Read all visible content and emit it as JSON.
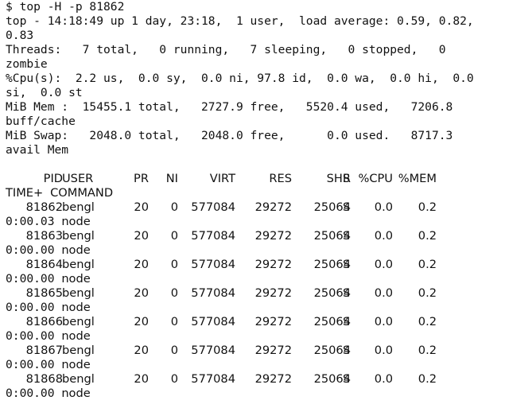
{
  "command": "$ top -H -p 81862",
  "summary": [
    "top - 14:18:49 up 1 day, 23:18,  1 user,  load average: 0.59, 0.82,",
    "0.83",
    "Threads:   7 total,   0 running,   7 sleeping,   0 stopped,   0",
    "zombie",
    "%Cpu(s):  2.2 us,  0.0 sy,  0.0 ni, 97.8 id,  0.0 wa,  0.0 hi,  0.0",
    "si,  0.0 st",
    "MiB Mem :  15455.1 total,   2727.9 free,   5520.4 used,   7206.8",
    "buff/cache",
    "MiB Swap:   2048.0 total,   2048.0 free,      0.0 used.   8717.3",
    "avail Mem"
  ],
  "columns": {
    "pid": "PID",
    "user": "USER",
    "pr": "PR",
    "ni": "NI",
    "virt": "VIRT",
    "res": "RES",
    "shr": "SHR",
    "s": "S",
    "cpu": "%CPU",
    "mem": "%MEM",
    "time": "TIME+",
    "command": "COMMAND"
  },
  "rows": [
    {
      "pid": "81862",
      "user": "bengl",
      "pr": "20",
      "ni": "0",
      "virt": "577084",
      "res": "29272",
      "shr": "25064",
      "s": "S",
      "cpu": "0.0",
      "mem": "0.2",
      "time": "0:00.03",
      "command": "node"
    },
    {
      "pid": "81863",
      "user": "bengl",
      "pr": "20",
      "ni": "0",
      "virt": "577084",
      "res": "29272",
      "shr": "25064",
      "s": "S",
      "cpu": "0.0",
      "mem": "0.2",
      "time": "0:00.00",
      "command": "node"
    },
    {
      "pid": "81864",
      "user": "bengl",
      "pr": "20",
      "ni": "0",
      "virt": "577084",
      "res": "29272",
      "shr": "25064",
      "s": "S",
      "cpu": "0.0",
      "mem": "0.2",
      "time": "0:00.00",
      "command": "node"
    },
    {
      "pid": "81865",
      "user": "bengl",
      "pr": "20",
      "ni": "0",
      "virt": "577084",
      "res": "29272",
      "shr": "25064",
      "s": "S",
      "cpu": "0.0",
      "mem": "0.2",
      "time": "0:00.00",
      "command": "node"
    },
    {
      "pid": "81866",
      "user": "bengl",
      "pr": "20",
      "ni": "0",
      "virt": "577084",
      "res": "29272",
      "shr": "25064",
      "s": "S",
      "cpu": "0.0",
      "mem": "0.2",
      "time": "0:00.00",
      "command": "node"
    },
    {
      "pid": "81867",
      "user": "bengl",
      "pr": "20",
      "ni": "0",
      "virt": "577084",
      "res": "29272",
      "shr": "25064",
      "s": "S",
      "cpu": "0.0",
      "mem": "0.2",
      "time": "0:00.00",
      "command": "node"
    },
    {
      "pid": "81868",
      "user": "bengl",
      "pr": "20",
      "ni": "0",
      "virt": "577084",
      "res": "29272",
      "shr": "25064",
      "s": "S",
      "cpu": "0.0",
      "mem": "0.2",
      "time": "0:00.00",
      "command": "node"
    }
  ]
}
